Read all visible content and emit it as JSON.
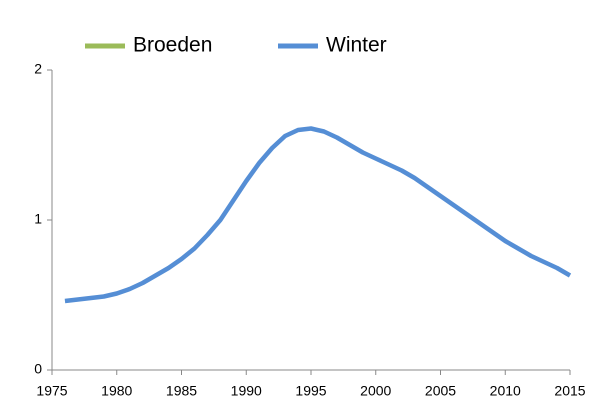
{
  "chart_data": {
    "type": "line",
    "x": [
      1976,
      1977,
      1978,
      1979,
      1980,
      1981,
      1982,
      1983,
      1984,
      1985,
      1986,
      1987,
      1988,
      1989,
      1990,
      1991,
      1992,
      1993,
      1994,
      1995,
      1996,
      1997,
      1998,
      1999,
      2000,
      2001,
      2002,
      2003,
      2004,
      2005,
      2006,
      2007,
      2008,
      2009,
      2010,
      2011,
      2012,
      2013,
      2014,
      2015
    ],
    "series": [
      {
        "name": "Broeden",
        "color": "#9bbb59",
        "values": [
          null,
          null,
          null,
          null,
          null,
          null,
          null,
          null,
          null,
          null,
          null,
          null,
          null,
          null,
          null,
          null,
          null,
          null,
          null,
          null,
          null,
          null,
          null,
          null,
          null,
          null,
          null,
          null,
          null,
          null,
          null,
          null,
          null,
          null,
          null,
          null,
          null,
          null,
          null,
          null
        ]
      },
      {
        "name": "Winter",
        "color": "#558ed5",
        "values": [
          0.46,
          0.47,
          0.48,
          0.49,
          0.51,
          0.54,
          0.58,
          0.63,
          0.68,
          0.74,
          0.81,
          0.9,
          1.0,
          1.13,
          1.26,
          1.38,
          1.48,
          1.56,
          1.6,
          1.61,
          1.59,
          1.55,
          1.5,
          1.45,
          1.41,
          1.37,
          1.33,
          1.28,
          1.22,
          1.16,
          1.1,
          1.04,
          0.98,
          0.92,
          0.86,
          0.81,
          0.76,
          0.72,
          0.68,
          0.63
        ]
      }
    ],
    "xlim": [
      1975,
      2015
    ],
    "xticks": [
      1975,
      1980,
      1985,
      1990,
      1995,
      2000,
      2005,
      2010,
      2015
    ],
    "ylim": [
      0,
      2
    ],
    "yticks": [
      0,
      1,
      2
    ],
    "grid": false
  }
}
